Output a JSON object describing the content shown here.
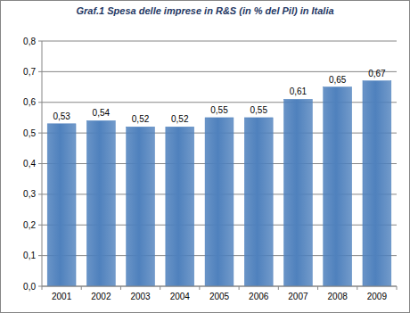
{
  "chart_data": {
    "type": "bar",
    "title": "Graf.1 Spesa delle imprese in R&S (in % del Pil) in Italia",
    "categories": [
      "2001",
      "2002",
      "2003",
      "2004",
      "2005",
      "2006",
      "2007",
      "2008",
      "2009"
    ],
    "values": [
      0.53,
      0.54,
      0.52,
      0.52,
      0.55,
      0.55,
      0.61,
      0.65,
      0.67
    ],
    "value_labels": [
      "0,53",
      "0,54",
      "0,52",
      "0,52",
      "0,55",
      "0,55",
      "0,61",
      "0,65",
      "0,67"
    ],
    "color": "#4f81bd",
    "ylim": [
      0,
      0.8
    ],
    "yticks": [
      {
        "value": 0,
        "label": "0,0"
      },
      {
        "value": 0.1,
        "label": "0,1"
      },
      {
        "value": 0.2,
        "label": "0,2"
      },
      {
        "value": 0.3,
        "label": "0,3"
      },
      {
        "value": 0.4,
        "label": "0,4"
      },
      {
        "value": 0.5,
        "label": "0,5"
      },
      {
        "value": 0.6,
        "label": "0,6"
      },
      {
        "value": 0.7,
        "label": "0,7"
      },
      {
        "value": 0.8,
        "label": "0,8"
      }
    ],
    "grid": true,
    "data_labels": true
  }
}
